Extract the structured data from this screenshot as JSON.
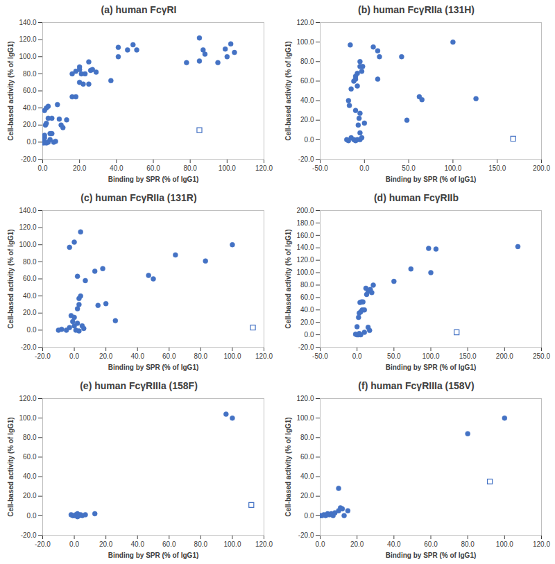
{
  "chart_data": [
    {
      "type": "scatter",
      "title": "(a) human FcγRI",
      "xlabel": "Binding by SPR (% of IgG1)",
      "ylabel": "Cell-based activity (% of IgG1)",
      "xlim": [
        0,
        120
      ],
      "ylim": [
        -20,
        140
      ],
      "xticks": [
        {
          "value": 0,
          "label": "0.0"
        },
        {
          "value": 20,
          "label": "20.0"
        },
        {
          "value": 40,
          "label": "40.0"
        },
        {
          "value": 60,
          "label": "60.0"
        },
        {
          "value": 80,
          "label": "80.0"
        },
        {
          "value": 100,
          "label": "100.0"
        },
        {
          "value": 120,
          "label": "120.0"
        }
      ],
      "yticks": [
        {
          "value": -20,
          "label": "-20.0"
        },
        {
          "value": 0,
          "label": "0.0"
        },
        {
          "value": 20,
          "label": "20.0"
        },
        {
          "value": 40,
          "label": "40.0"
        },
        {
          "value": 60,
          "label": "60.0"
        },
        {
          "value": 80,
          "label": "80.0"
        },
        {
          "value": 100,
          "label": "100.0"
        },
        {
          "value": 120,
          "label": "120.0"
        },
        {
          "value": 140,
          "label": "140.0"
        }
      ],
      "series": [
        {
          "color": "#4472c4",
          "marker": "circle",
          "x": [
            0,
            0.5,
            1,
            1,
            1.5,
            2,
            1,
            2,
            3,
            3,
            4,
            5,
            5,
            6,
            7,
            8,
            9,
            10,
            11,
            13,
            3,
            4,
            2,
            0.5,
            16,
            18,
            16,
            18,
            20,
            20,
            21,
            20,
            22,
            23,
            25,
            26,
            25,
            27,
            29,
            37,
            41,
            41,
            46,
            49,
            51,
            78,
            85,
            85,
            87,
            88,
            95,
            99,
            100,
            102,
            104
          ],
          "values": [
            0,
            2,
            5,
            8,
            20,
            22,
            37,
            40,
            42,
            28,
            10,
            10,
            28,
            0,
            1,
            44,
            27,
            20,
            17,
            26,
            0,
            3,
            -1,
            -1,
            53,
            53,
            80,
            83,
            85,
            88,
            80,
            70,
            68,
            80,
            94,
            84,
            68,
            85,
            82,
            72,
            111,
            100,
            108,
            114,
            108,
            93,
            122,
            95,
            108,
            103,
            93,
            109,
            100,
            115,
            105
          ]
        },
        {
          "color": "#4472c4",
          "marker": "open_square",
          "x": [
            85
          ],
          "values": [
            14
          ]
        }
      ]
    },
    {
      "type": "scatter",
      "title": "(b) human FcγRIIa (131H)",
      "xlabel": "Binding by SPR (% of IgG1)",
      "ylabel": "Cell-based activity (% of IgG1)",
      "xlim": [
        -50,
        200
      ],
      "ylim": [
        -20,
        120
      ],
      "xticks": [
        {
          "value": -50,
          "label": "-50.0"
        },
        {
          "value": 0,
          "label": "0.0"
        },
        {
          "value": 50,
          "label": "50.0"
        },
        {
          "value": 100,
          "label": "100.0"
        },
        {
          "value": 150,
          "label": "150.0"
        },
        {
          "value": 200,
          "label": "200.0"
        }
      ],
      "yticks": [
        {
          "value": -20,
          "label": "-20.0"
        },
        {
          "value": 0,
          "label": "0.0"
        },
        {
          "value": 20,
          "label": "20.0"
        },
        {
          "value": 40,
          "label": "40.0"
        },
        {
          "value": 60,
          "label": "60.0"
        },
        {
          "value": 80,
          "label": "80.0"
        },
        {
          "value": 100,
          "label": "100.0"
        },
        {
          "value": 120,
          "label": "120.0"
        }
      ],
      "series": [
        {
          "color": "#4472c4",
          "marker": "circle",
          "x": [
            -17,
            -18,
            -15,
            -12,
            -10,
            -8,
            -5,
            -5,
            -3,
            -2,
            -8,
            -10,
            -6,
            -7,
            -10,
            -5,
            -5,
            0,
            -15,
            -12,
            -18,
            -10,
            -8,
            -3,
            -20,
            -16,
            -5,
            10,
            15,
            17,
            15,
            42,
            48,
            62,
            65,
            100,
            126
          ],
          "values": [
            35,
            40,
            52,
            60,
            62,
            55,
            80,
            75,
            70,
            75,
            68,
            65,
            22,
            15,
            30,
            7,
            0,
            17,
            2,
            0,
            -1,
            -1,
            0,
            2,
            0,
            97,
            27,
            95,
            91,
            85,
            62,
            85,
            20,
            44,
            41,
            100,
            42
          ]
        },
        {
          "color": "#4472c4",
          "marker": "open_square",
          "x": [
            168
          ],
          "values": [
            1
          ]
        }
      ]
    },
    {
      "type": "scatter",
      "title": "(c) human FcγRIIa (131R)",
      "xlabel": "Binding by SPR (% of IgG1)",
      "ylabel": "Cell-based activity (% of IgG1)",
      "xlim": [
        -20,
        120
      ],
      "ylim": [
        -20,
        140
      ],
      "xticks": [
        {
          "value": -20,
          "label": "-20.0"
        },
        {
          "value": 0,
          "label": "0.0"
        },
        {
          "value": 20,
          "label": "20.0"
        },
        {
          "value": 40,
          "label": "40.0"
        },
        {
          "value": 60,
          "label": "60.0"
        },
        {
          "value": 80,
          "label": "80.0"
        },
        {
          "value": 100,
          "label": "100.0"
        },
        {
          "value": 120,
          "label": "120.0"
        }
      ],
      "yticks": [
        {
          "value": -20,
          "label": "-20.0"
        },
        {
          "value": 0,
          "label": "0.0"
        },
        {
          "value": 20,
          "label": "20.0"
        },
        {
          "value": 40,
          "label": "40.0"
        },
        {
          "value": 60,
          "label": "60.0"
        },
        {
          "value": 80,
          "label": "80.0"
        },
        {
          "value": 100,
          "label": "100.0"
        },
        {
          "value": 120,
          "label": "120.0"
        },
        {
          "value": 140,
          "label": "140.0"
        }
      ],
      "series": [
        {
          "color": "#4472c4",
          "marker": "circle",
          "x": [
            -3,
            0,
            4,
            2,
            3,
            4,
            3,
            2,
            7,
            13,
            15,
            18,
            20,
            26,
            47,
            50,
            64,
            83,
            100,
            -2,
            -1,
            0,
            -10,
            -5,
            -3,
            0,
            2,
            5,
            6,
            -8,
            3,
            1
          ],
          "values": [
            97,
            103,
            115,
            63,
            37,
            40,
            30,
            25,
            58,
            69,
            29,
            72,
            31,
            11,
            64,
            60,
            88,
            81,
            100,
            17,
            10,
            15,
            0,
            0,
            3,
            5,
            8,
            5,
            2,
            1,
            -1,
            0
          ]
        },
        {
          "color": "#4472c4",
          "marker": "open_square",
          "x": [
            113
          ],
          "values": [
            3
          ]
        }
      ]
    },
    {
      "type": "scatter",
      "title": "(d) human FcγRIIb",
      "xlabel": "Binding by SPR (% of IgG1)",
      "ylabel": "Cell-based activity (% of IgG1)",
      "xlim": [
        -50,
        250
      ],
      "ylim": [
        -20,
        200
      ],
      "xticks": [
        {
          "value": -50,
          "label": "-50.0"
        },
        {
          "value": 0,
          "label": "0.0"
        },
        {
          "value": 50,
          "label": "50.0"
        },
        {
          "value": 100,
          "label": "100.0"
        },
        {
          "value": 150,
          "label": "150.0"
        },
        {
          "value": 200,
          "label": "200.0"
        },
        {
          "value": 250,
          "label": "250.0"
        }
      ],
      "yticks": [
        {
          "value": -20,
          "label": "-20.0"
        },
        {
          "value": 0,
          "label": "0.0"
        },
        {
          "value": 20,
          "label": "20.0"
        },
        {
          "value": 40,
          "label": "40.0"
        },
        {
          "value": 60,
          "label": "60.0"
        },
        {
          "value": 80,
          "label": "80.0"
        },
        {
          "value": 100,
          "label": "100.0"
        },
        {
          "value": 120,
          "label": "120.0"
        },
        {
          "value": 140,
          "label": "140.0"
        },
        {
          "value": 160,
          "label": "160.0"
        },
        {
          "value": 180,
          "label": "180.0"
        },
        {
          "value": 200,
          "label": "200.0"
        }
      ],
      "series": [
        {
          "color": "#4472c4",
          "marker": "circle",
          "x": [
            0,
            2,
            -2,
            5,
            3,
            0,
            2,
            3,
            5,
            7,
            4,
            6,
            8,
            10,
            12,
            13,
            15,
            18,
            20,
            22,
            15,
            17,
            10,
            50,
            73,
            97,
            100,
            107,
            218
          ],
          "values": [
            0,
            0,
            1,
            0,
            2,
            13,
            28,
            35,
            37,
            40,
            52,
            53,
            53,
            40,
            75,
            65,
            70,
            73,
            68,
            80,
            12,
            7,
            4,
            86,
            106,
            139,
            100,
            138,
            142
          ]
        },
        {
          "color": "#4472c4",
          "marker": "open_square",
          "x": [
            135
          ],
          "values": [
            4
          ]
        }
      ]
    },
    {
      "type": "scatter",
      "title": "(e) human FcγRIIIa (158F)",
      "xlabel": "Binding by SPR (% of IgG1)",
      "ylabel": "Cell-based activity (% of IgG1)",
      "xlim": [
        -20,
        120
      ],
      "ylim": [
        -20,
        120
      ],
      "xticks": [
        {
          "value": -20,
          "label": "-20.0"
        },
        {
          "value": 0,
          "label": "0.0"
        },
        {
          "value": 20,
          "label": "20.0"
        },
        {
          "value": 40,
          "label": "40.0"
        },
        {
          "value": 60,
          "label": "60.0"
        },
        {
          "value": 80,
          "label": "80.0"
        },
        {
          "value": 100,
          "label": "100.0"
        },
        {
          "value": 120,
          "label": "120.0"
        }
      ],
      "yticks": [
        {
          "value": -20,
          "label": "-20.0"
        },
        {
          "value": 0,
          "label": "0.0"
        },
        {
          "value": 20,
          "label": "20.0"
        },
        {
          "value": 40,
          "label": "40.0"
        },
        {
          "value": 60,
          "label": "60.0"
        },
        {
          "value": 80,
          "label": "80.0"
        },
        {
          "value": 100,
          "label": "100.0"
        },
        {
          "value": 120,
          "label": "120.0"
        }
      ],
      "series": [
        {
          "color": "#4472c4",
          "marker": "circle",
          "x": [
            0,
            -1,
            1,
            2,
            3,
            4,
            5,
            7,
            13,
            -2,
            2,
            96,
            100
          ],
          "values": [
            0,
            0,
            1,
            2,
            0,
            1,
            0,
            1,
            2,
            1,
            -1,
            104,
            100
          ]
        },
        {
          "color": "#4472c4",
          "marker": "open_square",
          "x": [
            112
          ],
          "values": [
            11
          ]
        }
      ]
    },
    {
      "type": "scatter",
      "title": "(f) human FcγRIIIa (158V)",
      "xlabel": "Binding by SPR (% of IgG1)",
      "ylabel": "Cell-based activity (% of IgG1)",
      "xlim": [
        0,
        120
      ],
      "ylim": [
        -20,
        120
      ],
      "xticks": [
        {
          "value": 0,
          "label": "0.0"
        },
        {
          "value": 20,
          "label": "20.0"
        },
        {
          "value": 40,
          "label": "40.0"
        },
        {
          "value": 60,
          "label": "60.0"
        },
        {
          "value": 80,
          "label": "80.0"
        },
        {
          "value": 100,
          "label": "100.0"
        },
        {
          "value": 120,
          "label": "120.0"
        }
      ],
      "yticks": [
        {
          "value": -20,
          "label": "-20.0"
        },
        {
          "value": 0,
          "label": "0.0"
        },
        {
          "value": 20,
          "label": "20.0"
        },
        {
          "value": 40,
          "label": "40.0"
        },
        {
          "value": 60,
          "label": "60.0"
        },
        {
          "value": 80,
          "label": "80.0"
        },
        {
          "value": 100,
          "label": "100.0"
        },
        {
          "value": 120,
          "label": "120.0"
        }
      ],
      "series": [
        {
          "color": "#4472c4",
          "marker": "circle",
          "x": [
            0,
            1,
            2,
            3,
            4,
            5,
            7,
            8,
            10,
            10,
            11,
            12,
            13,
            15,
            6,
            80,
            100
          ],
          "values": [
            0,
            0,
            1,
            0,
            2,
            1,
            0,
            3,
            5,
            28,
            8,
            7,
            0,
            5,
            2,
            84,
            100
          ]
        },
        {
          "color": "#4472c4",
          "marker": "open_square",
          "x": [
            92
          ],
          "values": [
            35
          ]
        }
      ]
    }
  ]
}
